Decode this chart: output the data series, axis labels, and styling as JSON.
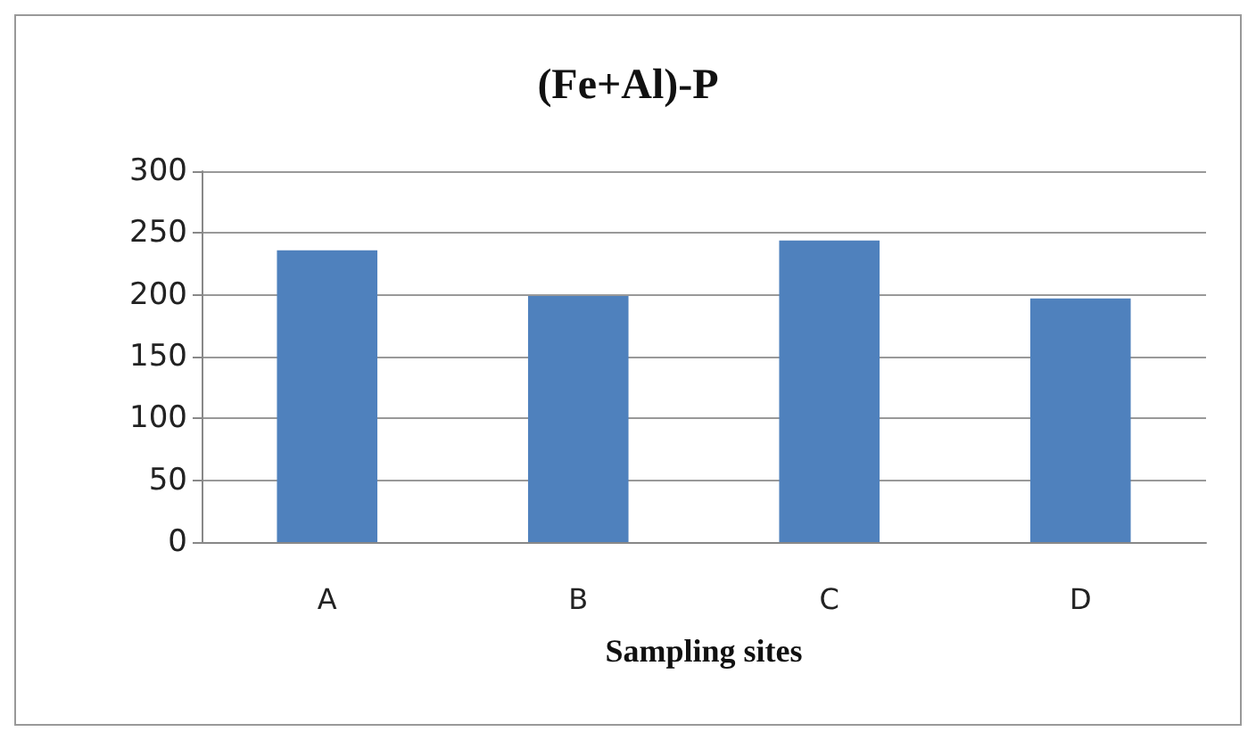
{
  "chart_data": {
    "type": "bar",
    "title": "(Fe+Al)-P",
    "xlabel": "Sampling sites",
    "categories": [
      "A",
      "B",
      "C",
      "D"
    ],
    "values": [
      236,
      199,
      244,
      197
    ],
    "color": "#4f81bd",
    "ylim": [
      0,
      300
    ],
    "yticks": [
      0,
      50,
      100,
      150,
      200,
      250,
      300
    ],
    "grid": "y"
  }
}
